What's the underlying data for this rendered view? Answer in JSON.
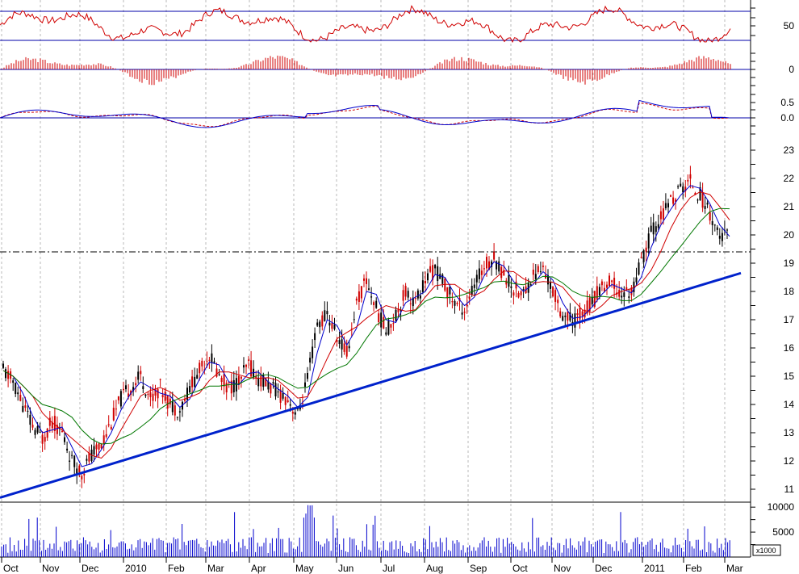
{
  "chart_data": [
    {
      "panel": "rsi",
      "type": "line",
      "y_ticks": [
        "50"
      ],
      "ylim": [
        30,
        80
      ],
      "reference_lines": [
        70,
        30
      ],
      "series": [
        {
          "color": "#d00000"
        }
      ]
    },
    {
      "panel": "macd_histogram",
      "type": "bar",
      "y_ticks": [
        "0"
      ],
      "baseline": 0,
      "series": [
        {
          "color": "#d00000"
        }
      ]
    },
    {
      "panel": "macd",
      "type": "line",
      "y_ticks": [
        "0.5",
        "0.0"
      ],
      "ylim": [
        -0.3,
        0.8
      ],
      "series": [
        {
          "color": "#0000cc",
          "style": "solid"
        },
        {
          "color": "#d00000",
          "style": "dashed"
        }
      ]
    },
    {
      "panel": "price",
      "type": "candlestick",
      "y_ticks": [
        "23",
        "22",
        "21",
        "20",
        "19",
        "18",
        "17",
        "16",
        "15",
        "14",
        "13",
        "12",
        "11"
      ],
      "ylim": [
        10.8,
        23.5
      ],
      "x_ticks": [
        "Oct",
        "Nov",
        "Dec",
        "2010",
        "Feb",
        "Mar",
        "Apr",
        "May",
        "Jun",
        "Jul",
        "Aug",
        "Sep",
        "Oct",
        "Nov",
        "Dec",
        "2011",
        "Feb",
        "Mar"
      ],
      "close": [
        15.2,
        14.8,
        14.0,
        13.2,
        12.8,
        13.4,
        13.0,
        12.0,
        11.6,
        12.2,
        12.6,
        13.4,
        14.2,
        14.6,
        15.0,
        14.2,
        14.6,
        14.0,
        13.8,
        14.6,
        15.2,
        15.8,
        15.0,
        14.6,
        14.8,
        15.4,
        14.9,
        14.7,
        14.4,
        14.2,
        13.6,
        14.9,
        16.8,
        17.2,
        16.4,
        15.8,
        17.6,
        18.4,
        17.4,
        16.6,
        17.2,
        18.0,
        17.6,
        18.4,
        18.8,
        18.2,
        17.6,
        17.4,
        18.2,
        18.9,
        19.2,
        18.6,
        18.1,
        17.9,
        18.6,
        18.8,
        18.0,
        17.2,
        16.9,
        17.3,
        17.6,
        18.2,
        18.3,
        17.9,
        18.0,
        19.0,
        20.1,
        20.6,
        21.2,
        21.6,
        21.9,
        21.4,
        20.8,
        19.9,
        20.0
      ],
      "horizontal_lines": [
        19.4
      ],
      "trendline": [
        {
          "x": 0,
          "y": 10.7
        },
        {
          "x": 74,
          "y": 18.65
        }
      ],
      "series": [
        {
          "kind": "candles",
          "color": "#000000"
        },
        {
          "kind": "moving_average",
          "color": "#0000cc"
        },
        {
          "kind": "moving_average",
          "color": "#d00000"
        },
        {
          "kind": "moving_average",
          "color": "#007700"
        }
      ]
    },
    {
      "panel": "volume",
      "type": "bar",
      "y_ticks": [
        "10000",
        "5000"
      ],
      "unit_label": "x1000",
      "ylim": [
        0,
        11000
      ],
      "series": [
        {
          "color": "#0000cc"
        }
      ]
    }
  ]
}
